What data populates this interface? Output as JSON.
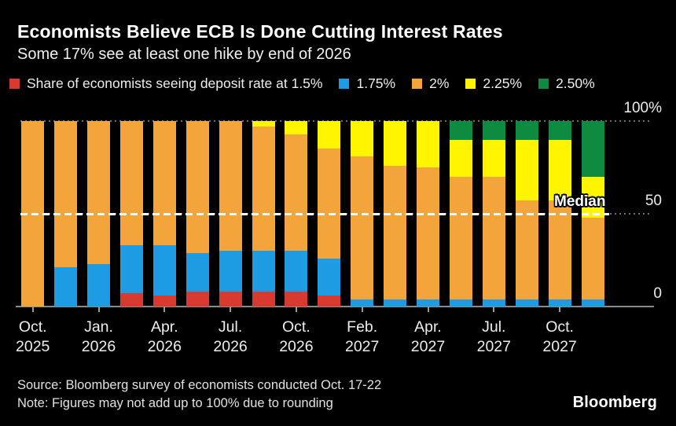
{
  "footer": {
    "source": "Source: Bloomberg survey of economists conducted Oct. 17-22",
    "note": "Note: Figures may not add up to 100% due to rounding",
    "logo": "Bloomberg"
  },
  "chart_data": {
    "type": "stacked-bar",
    "title": "Economists Believe ECB Is Done Cutting Interest Rates",
    "subtitle": "Some 17% see at least one hike by end of 2026",
    "unit": "%",
    "ylim": [
      0,
      100
    ],
    "grid": "dotted horizontal at 0, 50, 100",
    "legend_position": "top",
    "legend": [
      {
        "label": "Share of economists seeing deposit rate at 1.5%",
        "color": "#d93a30"
      },
      {
        "label": "1.75%",
        "color": "#1d9ce4"
      },
      {
        "label": "2%",
        "color": "#f3a43b"
      },
      {
        "label": "2.25%",
        "color": "#fff500"
      },
      {
        "label": "2.50%",
        "color": "#0f8a41"
      }
    ],
    "yticks": [
      {
        "value": 100,
        "label": "100%"
      },
      {
        "value": 50,
        "label": "50"
      },
      {
        "value": 0,
        "label": "0"
      }
    ],
    "median_line": {
      "value": 50,
      "label": "Median"
    },
    "bar_count": 18,
    "x_ticks": [
      {
        "bar_index": 0,
        "month": "Oct.",
        "year": "2025"
      },
      {
        "bar_index": 2,
        "month": "Jan.",
        "year": "2026"
      },
      {
        "bar_index": 4,
        "month": "Apr.",
        "year": "2026"
      },
      {
        "bar_index": 6,
        "month": "Jul.",
        "year": "2026"
      },
      {
        "bar_index": 8,
        "month": "Oct.",
        "year": "2026"
      },
      {
        "bar_index": 10,
        "month": "Feb.",
        "year": "2027"
      },
      {
        "bar_index": 12,
        "month": "Apr.",
        "year": "2027"
      },
      {
        "bar_index": 14,
        "month": "Jul.",
        "year": "2027"
      },
      {
        "bar_index": 16,
        "month": "Oct.",
        "year": "2027"
      }
    ],
    "series": [
      {
        "name": "1.5%",
        "color": "#d93a30",
        "values": [
          0,
          0,
          0,
          7,
          6,
          8,
          8,
          8,
          8,
          6,
          0,
          0,
          0,
          0,
          0,
          0,
          0,
          0
        ]
      },
      {
        "name": "1.75%",
        "color": "#1d9ce4",
        "values": [
          0,
          21,
          23,
          26,
          27,
          21,
          22,
          22,
          22,
          20,
          4,
          4,
          4,
          4,
          4,
          4,
          4,
          4
        ]
      },
      {
        "name": "2%",
        "color": "#f3a43b",
        "values": [
          100,
          79,
          77,
          67,
          67,
          71,
          70,
          67,
          63,
          59,
          77,
          72,
          71,
          66,
          66,
          53,
          53,
          44
        ]
      },
      {
        "name": "2.25%",
        "color": "#fff500",
        "values": [
          0,
          0,
          0,
          0,
          0,
          0,
          0,
          3,
          7,
          15,
          19,
          24,
          25,
          20,
          20,
          33,
          33,
          22
        ]
      },
      {
        "name": "2.50%",
        "color": "#0f8a41",
        "values": [
          0,
          0,
          0,
          0,
          0,
          0,
          0,
          0,
          0,
          0,
          0,
          0,
          0,
          10,
          10,
          10,
          10,
          30
        ]
      }
    ]
  }
}
